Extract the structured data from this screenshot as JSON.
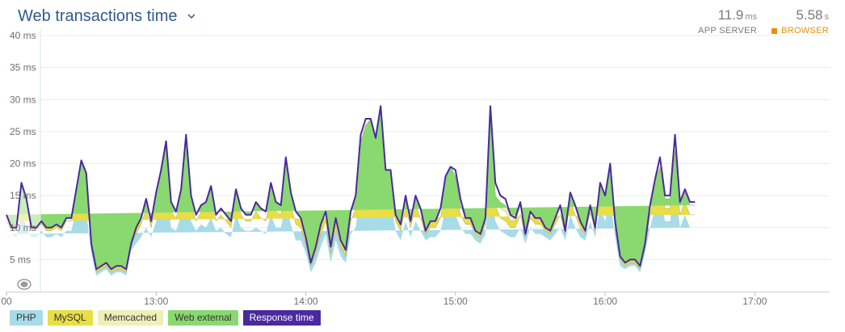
{
  "header": {
    "title": "Web transactions time",
    "app_server": {
      "value": "11.9",
      "unit": "ms",
      "label": "APP SERVER"
    },
    "browser": {
      "value": "5.58",
      "unit": "s",
      "label": "BROWSER"
    }
  },
  "chart_data": {
    "type": "area",
    "ylim": [
      0,
      40
    ],
    "y_ticks": [
      {
        "value": 5,
        "label": "5 ms"
      },
      {
        "value": 10,
        "label": "10 ms"
      },
      {
        "value": 15,
        "label": "15 ms"
      },
      {
        "value": 20,
        "label": "20 ms"
      },
      {
        "value": 25,
        "label": "25 ms"
      },
      {
        "value": 30,
        "label": "30 ms"
      },
      {
        "value": 35,
        "label": "35 ms"
      },
      {
        "value": 40,
        "label": "40 ms"
      }
    ],
    "xlim": [
      0,
      330
    ],
    "x_ticks": [
      {
        "value": 0,
        "label": "00"
      },
      {
        "value": 60,
        "label": "13:00"
      },
      {
        "value": 120,
        "label": "14:00"
      },
      {
        "value": 180,
        "label": "15:00"
      },
      {
        "value": 240,
        "label": "16:00"
      },
      {
        "value": 300,
        "label": "17:00"
      }
    ],
    "grid": true,
    "legend_position": "bottom-left",
    "x_minutes": [
      0,
      2,
      4,
      6,
      8,
      10,
      12,
      14,
      16,
      18,
      20,
      22,
      24,
      26,
      28,
      30,
      32,
      34,
      36,
      38,
      40,
      42,
      44,
      46,
      48,
      50,
      52,
      54,
      56,
      58,
      60,
      62,
      64,
      66,
      68,
      70,
      72,
      74,
      76,
      78,
      80,
      82,
      84,
      86,
      88,
      90,
      92,
      94,
      96,
      98,
      100,
      102,
      104,
      106,
      108,
      110,
      112,
      114,
      116,
      118,
      120,
      122,
      124,
      126,
      128,
      130,
      132,
      134,
      136,
      138,
      140,
      142,
      144,
      146,
      148,
      150,
      152,
      154,
      156,
      158,
      160,
      162,
      164,
      166,
      168,
      170,
      172,
      174,
      176,
      178,
      180,
      182,
      184,
      186,
      188,
      190,
      192,
      194,
      196,
      198,
      200,
      202,
      204,
      206,
      208,
      210,
      212,
      214,
      216,
      218,
      220,
      222,
      224,
      226,
      228,
      230,
      232,
      234,
      236,
      238,
      240,
      242,
      244,
      246,
      248,
      250,
      252,
      254,
      256,
      258,
      260,
      262,
      264,
      266,
      268,
      270,
      272,
      274,
      276,
      278,
      280,
      282,
      284,
      286,
      288,
      290,
      292,
      294,
      296,
      298,
      300,
      302,
      304,
      306,
      308,
      310,
      312,
      314,
      316,
      318,
      320,
      322,
      324,
      326,
      328,
      330
    ],
    "series": [
      {
        "name": "PHP",
        "color": "#a8dbe8",
        "values": [
          9,
          9,
          8.5,
          12,
          10,
          8.5,
          8.5,
          9.5,
          8.5,
          8.5,
          9,
          8.5,
          9.5,
          9.5,
          13,
          14.5,
          12.5,
          6,
          2.5,
          3,
          3.5,
          2.5,
          3,
          3,
          2.5,
          6.5,
          7.5,
          8.5,
          10,
          8.5,
          11,
          13,
          16,
          10,
          9.5,
          12,
          17,
          11,
          9.5,
          10.5,
          10,
          11.5,
          9.5,
          10,
          9,
          8.5,
          12,
          10,
          9.5,
          9.5,
          10,
          9.5,
          9,
          12,
          10,
          10,
          14,
          10.5,
          8,
          8,
          6,
          3,
          4.5,
          7,
          9,
          4.5,
          8,
          5.5,
          4.5,
          9,
          10,
          16,
          17,
          17,
          16,
          18,
          14,
          14,
          9.5,
          8,
          11,
          8.5,
          11,
          9.5,
          8,
          8.5,
          8.5,
          9.5,
          13,
          13.5,
          12,
          10,
          9,
          9,
          8,
          7.5,
          9,
          19,
          11,
          9.5,
          9,
          8.5,
          8.5,
          10,
          7.5,
          10,
          9,
          9,
          8.5,
          8,
          9,
          10,
          8,
          12,
          10,
          8.5,
          8,
          11,
          8.5,
          13,
          11,
          14.5,
          8.5,
          4,
          3.5,
          4,
          4,
          3,
          6,
          10,
          13,
          15,
          11,
          11,
          17,
          10,
          12,
          10,
          10
        ]
      },
      {
        "name": "MySQL",
        "color": "#e8de45",
        "values": [
          2,
          0.5,
          1,
          3.5,
          3,
          1,
          1,
          1,
          1,
          1,
          1,
          1,
          1.5,
          1.5,
          2,
          3.5,
          3,
          1,
          0.5,
          0.5,
          0.5,
          0.5,
          0.5,
          0.5,
          0.5,
          1,
          1.5,
          2,
          3,
          1.5,
          3,
          4,
          5,
          2.5,
          2,
          2.5,
          5,
          2.5,
          1.5,
          2,
          2.5,
          3,
          1.5,
          2,
          2,
          1.5,
          2.5,
          2,
          1.5,
          1.5,
          2.5,
          2,
          2,
          3,
          2.5,
          2,
          4.5,
          3,
          2.5,
          2,
          1.5,
          1,
          1.5,
          2,
          2,
          1.5,
          2,
          1.5,
          1,
          2,
          3,
          5,
          5.5,
          5.5,
          5,
          7,
          3,
          3,
          1.5,
          1.5,
          2.5,
          1.5,
          2.5,
          2,
          1,
          1.5,
          1.5,
          2,
          3,
          3.5,
          3.5,
          2,
          1.5,
          1.5,
          1,
          1,
          1.5,
          6,
          2.5,
          2,
          2,
          1.5,
          1.5,
          2,
          1,
          1.5,
          1.5,
          1.5,
          1,
          1,
          1.5,
          2,
          1,
          2,
          2,
          1.5,
          1,
          1.5,
          1,
          2.5,
          2.5,
          3,
          1.5,
          1,
          0.5,
          0.5,
          0.5,
          0.5,
          1,
          2,
          2.5,
          2.5,
          2,
          2,
          3,
          2,
          2,
          2,
          2
        ]
      },
      {
        "name": "Memcached",
        "color": "#eef0b8",
        "values": [
          1,
          0.5,
          0.5,
          1.5,
          1.5,
          0.5,
          0.5,
          0.5,
          0.5,
          0.5,
          0.5,
          0.5,
          0.5,
          0.5,
          1,
          2,
          2.5,
          0.5,
          0.5,
          0.5,
          0.5,
          0.5,
          0.5,
          0.5,
          0.5,
          0.5,
          1,
          1,
          1.5,
          1,
          1.5,
          2,
          2.5,
          1.5,
          1,
          1.5,
          2.5,
          1.5,
          1,
          1,
          1.5,
          2,
          1,
          1,
          1,
          1,
          1.5,
          1,
          1,
          1,
          1.5,
          1.5,
          1.5,
          2,
          1.5,
          1.5,
          2.5,
          2,
          2,
          1.5,
          1,
          0.5,
          1,
          1.5,
          1.5,
          1,
          1.5,
          1,
          1,
          1.5,
          2,
          2.5,
          3,
          3,
          3,
          4,
          2,
          2,
          1,
          1,
          1.5,
          1,
          1.5,
          1.5,
          0.5,
          1,
          1,
          1.5,
          2,
          2.5,
          2.5,
          1.5,
          1,
          1,
          0.5,
          0.5,
          1,
          3,
          1.5,
          1.5,
          1.5,
          1,
          1,
          1.5,
          0.5,
          1,
          1,
          1,
          0.5,
          0.5,
          1,
          1.5,
          0.5,
          1.5,
          1.5,
          1,
          0.5,
          1,
          0.5,
          1.5,
          1.5,
          2,
          1,
          0.5,
          0.5,
          0.5,
          0.5,
          0.5,
          0.5,
          1.5,
          2,
          2,
          1.5,
          1.5,
          2,
          1.5,
          1.5,
          1.5,
          1.5
        ]
      },
      {
        "name": "Web external",
        "color": "#8ad870",
        "values": [
          0,
          0,
          0,
          0,
          0,
          0,
          0,
          0,
          0,
          0,
          0,
          0,
          0,
          0,
          0,
          0.5,
          0.5,
          0,
          0,
          0,
          0,
          0,
          0,
          0,
          0,
          0,
          0,
          0,
          0,
          0,
          0,
          0,
          0,
          0,
          0,
          0,
          0,
          0,
          0,
          0,
          0,
          0,
          0,
          0,
          0,
          0,
          0,
          0,
          0,
          0,
          0,
          0,
          0,
          0,
          0,
          0,
          0,
          0,
          0,
          0,
          0,
          0,
          0,
          0,
          0,
          0,
          0,
          0,
          0,
          0,
          0,
          0,
          0.5,
          1.5,
          0,
          0,
          0,
          0,
          0,
          0,
          0,
          0,
          0,
          0,
          0,
          0,
          0,
          0,
          0,
          0,
          0,
          0,
          0,
          0,
          0,
          0,
          0,
          0,
          0,
          1,
          1,
          1,
          1,
          0,
          0,
          0,
          0,
          0,
          0,
          0,
          0,
          0,
          0,
          0,
          0,
          0,
          0,
          0,
          0,
          0,
          0,
          0,
          0,
          0,
          0,
          0,
          0,
          0,
          0,
          0,
          0,
          0,
          0,
          0,
          0,
          0,
          0,
          0,
          0,
          0,
          0,
          0,
          0,
          0,
          0.5,
          0,
          0,
          0,
          0,
          0,
          0,
          0
        ]
      },
      {
        "name": "Response time",
        "color": "#4a2a9e",
        "values": [
          12,
          10,
          10,
          17,
          14.5,
          10,
          10,
          11,
          10,
          10,
          10.5,
          10,
          11.5,
          11.5,
          16,
          20.5,
          18.5,
          7.5,
          3.5,
          4,
          4.5,
          3.5,
          4,
          4,
          3.5,
          7.5,
          10,
          11.5,
          14.5,
          11,
          15.5,
          19,
          23.5,
          14,
          12.5,
          16,
          24.5,
          15,
          12,
          13.5,
          14,
          16.5,
          12,
          13,
          12,
          11,
          16,
          13,
          12,
          12,
          14,
          13,
          12.5,
          17,
          14,
          13.5,
          21,
          15.5,
          12.5,
          11.5,
          8.5,
          4.5,
          7,
          10.5,
          12.5,
          7,
          11.5,
          8,
          6.5,
          12.5,
          15,
          24.5,
          27,
          27,
          24,
          29,
          19,
          19,
          12,
          10.5,
          15,
          11,
          15,
          13,
          9.5,
          11,
          11,
          13,
          18,
          19.5,
          19,
          14.5,
          11.5,
          11.5,
          9.5,
          9,
          11.5,
          29,
          17,
          15,
          14.5,
          12,
          11.5,
          14,
          9,
          12.5,
          11.5,
          11.5,
          10,
          9.5,
          11.5,
          13.5,
          9.5,
          15.5,
          13.5,
          11,
          9.5,
          13.5,
          10,
          17,
          15,
          20,
          11,
          5.5,
          4.5,
          5,
          5,
          4,
          7.5,
          13.5,
          17.5,
          21,
          15,
          15,
          24.5,
          14,
          16,
          14,
          14
        ]
      }
    ]
  },
  "legend": {
    "items": [
      {
        "label": "PHP",
        "color": "#a8dbe8"
      },
      {
        "label": "MySQL",
        "color": "#e8de45"
      },
      {
        "label": "Memcached",
        "color": "#eef0b8"
      },
      {
        "label": "Web external",
        "color": "#8ad870"
      },
      {
        "label": "Response time",
        "color": "#4a2a9e"
      }
    ]
  }
}
